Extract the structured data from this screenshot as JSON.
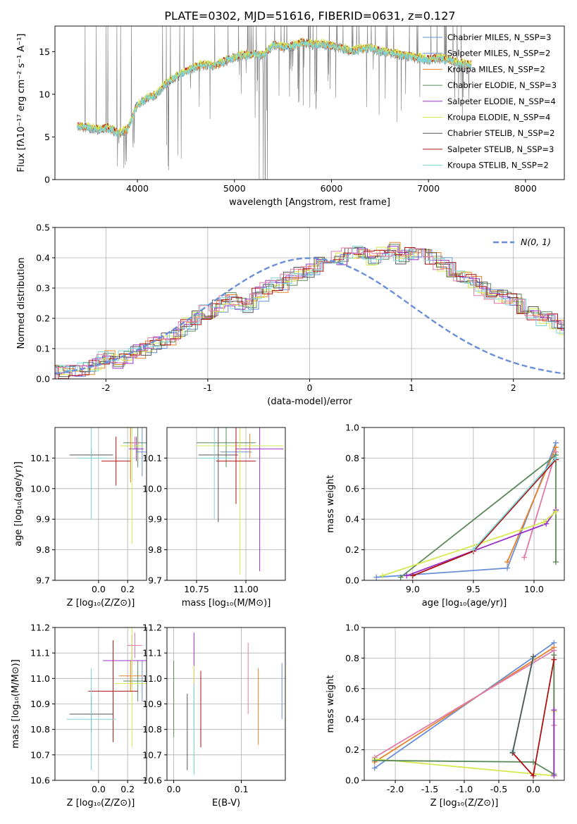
{
  "figure_title": "PLATE=0302, MJD=51616, FIBERID=0631, z=0.127",
  "colors": {
    "Chabrier MILES": "#6a8fd8",
    "Salpeter MILES": "#6a8fd8",
    "Kroupa MILES": "#e8822a",
    "Chabrier ELODIE": "#5a8a5a",
    "Salpeter ELODIE": "#9b30c8",
    "Kroupa ELODIE": "#d6ea50",
    "Chabrier STELIB": "#555555",
    "Salpeter STELIB": "#b01010",
    "Kroupa STELIB": "#7ad4d8",
    "pink": "#e07aa8",
    "data": "#808080",
    "grid": "#b0b0b0"
  },
  "chart_data": [
    {
      "type": "line",
      "title": "PLATE=0302, MJD=51616, FIBERID=0631, z=0.127",
      "xlabel": "wavelength [Angstrom, rest frame]",
      "ylabel": "Flux [fλ10⁻¹⁷ erg cm⁻² s⁻¹ A⁻¹]",
      "xlim": [
        3150,
        8400
      ],
      "ylim": [
        0,
        18
      ],
      "xticks": [
        4000,
        5000,
        6000,
        7000,
        8000
      ],
      "yticks": [
        0,
        5,
        10,
        15
      ],
      "grid": false,
      "legend_position": "top-right",
      "legend": [
        "Chabrier MILES, N_SSP=3",
        "Salpeter MILES, N_SSP=2",
        "Kroupa MILES, N_SSP=2",
        "Chabrier ELODIE, N_SSP=3",
        "Salpeter ELODIE, N_SSP=4",
        "Kroupa ELODIE, N_SSP=4",
        "Chabrier STELIB, N_SSP=2",
        "Salpeter STELIB, N_SSP=3",
        "Kroupa STELIB, N_SSP=2"
      ],
      "continuum": {
        "x": [
          3380,
          3500,
          3600,
          3700,
          3800,
          3900,
          4000,
          4100,
          4200,
          4300,
          4400,
          4500,
          4600,
          4700,
          4800,
          4900,
          5000,
          5100,
          5200,
          5300,
          5400,
          5500,
          5600,
          5700,
          5800,
          5900,
          6000,
          6100,
          6200,
          6300,
          6400,
          6500,
          6600,
          6700,
          6800,
          6900,
          7000,
          7100,
          7200,
          7300,
          7400
        ],
        "y": [
          6.2,
          6.0,
          5.8,
          6.0,
          5.4,
          5.8,
          8.8,
          9.5,
          9.9,
          11.2,
          12.0,
          12.6,
          13.2,
          13.4,
          13.3,
          13.8,
          14.3,
          14.5,
          14.6,
          14.5,
          15.8,
          15.4,
          15.6,
          16.0,
          15.8,
          15.8,
          15.6,
          15.4,
          15.0,
          15.2,
          15.4,
          15.0,
          14.8,
          14.6,
          14.4,
          14.2,
          14.0,
          14.2,
          14.0,
          13.6,
          13.4
        ]
      }
    },
    {
      "type": "histogram",
      "xlabel": "(data-model)/error",
      "ylabel": "Normed distribution",
      "xlim": [
        -2.5,
        2.5
      ],
      "ylim": [
        0,
        0.5
      ],
      "xticks": [
        -2,
        -1,
        0,
        1,
        2
      ],
      "yticks": [
        0.0,
        0.1,
        0.2,
        0.3,
        0.4,
        0.5
      ],
      "grid": true,
      "legend": [
        "N(0, 1)"
      ],
      "legend_position": "top-right",
      "bin_width": 0.1,
      "bin_start": -2.5,
      "model_envelope": [
        0.02,
        0.02,
        0.03,
        0.03,
        0.05,
        0.07,
        0.06,
        0.07,
        0.09,
        0.1,
        0.12,
        0.13,
        0.15,
        0.18,
        0.2,
        0.22,
        0.24,
        0.26,
        0.25,
        0.24,
        0.28,
        0.3,
        0.31,
        0.33,
        0.35,
        0.36,
        0.38,
        0.39,
        0.4,
        0.41,
        0.42,
        0.4,
        0.41,
        0.43,
        0.4,
        0.41,
        0.42,
        0.4,
        0.38,
        0.36,
        0.34,
        0.32,
        0.3,
        0.28,
        0.27,
        0.26,
        0.24,
        0.22,
        0.2,
        0.19,
        0.17,
        0.16,
        0.14,
        0.13,
        0.11,
        0.1,
        0.09,
        0.08,
        0.07,
        0.07,
        0.06,
        0.05,
        0.05,
        0.04,
        0.04,
        0.03,
        0.03,
        0.03,
        0.02,
        0.02
      ]
    },
    {
      "type": "scatter",
      "panel": "age-vs-Z",
      "xlabel": "Z [log₁₀(Z/Z⊙)]",
      "ylabel": "age [log₁₀(age/yr)]",
      "xlim": [
        -0.3,
        0.33
      ],
      "ylim": [
        9.7,
        10.2
      ],
      "xticks": [
        0.0,
        0.2
      ],
      "yticks": [
        9.7,
        9.8,
        9.9,
        10.0,
        10.1
      ],
      "points": [
        {
          "series": "Chabrier MILES",
          "x": 0.3,
          "y": 10.12,
          "xerr": 0.04,
          "yerr": 0.08
        },
        {
          "series": "Kroupa MILES",
          "x": 0.22,
          "y": 10.14,
          "xerr": 0.07,
          "yerr": 0.12
        },
        {
          "series": "Chabrier ELODIE",
          "x": 0.27,
          "y": 10.15,
          "xerr": 0.1,
          "yerr": 0.08
        },
        {
          "series": "Salpeter ELODIE",
          "x": 0.26,
          "y": 10.13,
          "xerr": 0.05,
          "yerr": 0.04
        },
        {
          "series": "Kroupa ELODIE",
          "x": 0.23,
          "y": 10.14,
          "xerr": 0.08,
          "yerr": 0.32
        },
        {
          "series": "Chabrier STELIB",
          "x": -0.05,
          "y": 10.11,
          "xerr": 0.15,
          "yerr": 0.02
        },
        {
          "series": "Salpeter STELIB",
          "x": 0.12,
          "y": 10.09,
          "xerr": 0.1,
          "yerr": 0.08
        },
        {
          "series": "Kroupa STELIB",
          "x": -0.05,
          "y": 10.1,
          "xerr": 0.1,
          "yerr": 0.2
        },
        {
          "series": "pink",
          "x": 0.25,
          "y": 10.15,
          "xerr": 0.03,
          "yerr": 0.02
        }
      ]
    },
    {
      "type": "scatter",
      "panel": "age-vs-mass",
      "xlabel": "mass [log₁₀(M/M⊙)]",
      "xlim": [
        10.6,
        11.2
      ],
      "ylim": [
        9.7,
        10.2
      ],
      "xticks": [
        10.75,
        11.0
      ],
      "yticks": [
        9.7,
        9.8,
        9.9,
        10.0,
        10.1
      ],
      "points": [
        {
          "series": "Chabrier MILES",
          "x": 10.95,
          "y": 10.12,
          "xerr": 0.08,
          "yerr": 0.04
        },
        {
          "series": "Kroupa MILES",
          "x": 11.02,
          "y": 10.14,
          "xerr": 0.06,
          "yerr": 0.04
        },
        {
          "series": "Chabrier ELODIE",
          "x": 10.9,
          "y": 10.15,
          "xerr": 0.15,
          "yerr": 0.08
        },
        {
          "series": "Salpeter ELODIE",
          "x": 11.07,
          "y": 10.13,
          "xerr": 0.12,
          "yerr": 0.4
        },
        {
          "series": "Kroupa ELODIE",
          "x": 10.97,
          "y": 10.14,
          "xerr": 0.22,
          "yerr": 0.42
        },
        {
          "series": "Chabrier STELIB",
          "x": 10.86,
          "y": 10.11,
          "xerr": 0.1,
          "yerr": 0.22
        },
        {
          "series": "Salpeter STELIB",
          "x": 10.95,
          "y": 10.09,
          "xerr": 0.1,
          "yerr": 0.14
        },
        {
          "series": "Kroupa STELIB",
          "x": 10.84,
          "y": 10.1,
          "xerr": 0.08,
          "yerr": 0.2
        }
      ]
    },
    {
      "type": "line",
      "panel": "mass-weight-vs-age",
      "xlabel": "age [log₁₀(age/yr)]",
      "ylabel": "mass weight",
      "xlim": [
        8.6,
        10.25
      ],
      "ylim": [
        0,
        1
      ],
      "xticks": [
        9.0,
        9.5,
        10.0
      ],
      "yticks": [
        0.0,
        0.2,
        0.4,
        0.6,
        0.8,
        1.0
      ],
      "grid": true,
      "series": [
        {
          "name": "Chabrier MILES",
          "x": [
            8.7,
            9.78,
            10.18
          ],
          "y": [
            0.02,
            0.08,
            0.9
          ]
        },
        {
          "name": "Kroupa MILES",
          "x": [
            9.78,
            10.18
          ],
          "y": [
            0.12,
            0.87
          ]
        },
        {
          "name": "pink",
          "x": [
            9.92,
            10.18
          ],
          "y": [
            0.15,
            0.84
          ]
        },
        {
          "name": "Chabrier ELODIE",
          "x": [
            8.9,
            10.18,
            10.18
          ],
          "y": [
            0.02,
            0.82,
            0.12
          ]
        },
        {
          "name": "Salpeter ELODIE",
          "x": [
            8.95,
            10.1,
            10.18
          ],
          "y": [
            0.03,
            0.37,
            0.46
          ]
        },
        {
          "name": "Kroupa ELODIE",
          "x": [
            8.75,
            10.08,
            10.18
          ],
          "y": [
            0.03,
            0.38,
            0.45
          ]
        },
        {
          "name": "Salpeter STELIB",
          "x": [
            9.0,
            9.5,
            10.18
          ],
          "y": [
            0.03,
            0.19,
            0.79
          ]
        },
        {
          "name": "Kroupa STELIB",
          "x": [
            9.5,
            10.18
          ],
          "y": [
            0.2,
            0.8
          ]
        }
      ]
    },
    {
      "type": "scatter",
      "panel": "mass-vs-Z",
      "xlabel": "Z [log₁₀(Z/Z⊙)]",
      "ylabel": "mass [log₁₀(M/M⊙)]",
      "xlim": [
        -0.3,
        0.33
      ],
      "ylim": [
        10.6,
        11.2
      ],
      "xticks": [
        0.0,
        0.2
      ],
      "yticks": [
        10.6,
        10.7,
        10.8,
        10.9,
        11.0,
        11.1,
        11.2
      ],
      "points": [
        {
          "series": "Chabrier MILES",
          "x": 0.3,
          "y": 10.99,
          "xerr": 0.04,
          "yerr": 0.08
        },
        {
          "series": "Kroupa MILES",
          "x": 0.22,
          "y": 11.01,
          "xerr": 0.08,
          "yerr": 0.06
        },
        {
          "series": "Chabrier ELODIE",
          "x": 0.27,
          "y": 10.99,
          "xerr": 0.1,
          "yerr": 0.08
        },
        {
          "series": "Salpeter ELODIE",
          "x": 0.23,
          "y": 11.07,
          "xerr": 0.2,
          "yerr": 0.1
        },
        {
          "series": "Kroupa ELODIE",
          "x": 0.23,
          "y": 10.98,
          "xerr": 0.12,
          "yerr": 0.25
        },
        {
          "series": "Chabrier STELIB",
          "x": -0.05,
          "y": 10.86,
          "xerr": 0.15,
          "yerr": 0.07
        },
        {
          "series": "Salpeter STELIB",
          "x": 0.1,
          "y": 10.95,
          "xerr": 0.17,
          "yerr": 0.2
        },
        {
          "series": "Kroupa STELIB",
          "x": -0.05,
          "y": 10.84,
          "xerr": 0.17,
          "yerr": 0.2
        },
        {
          "series": "pink",
          "x": 0.25,
          "y": 11.13,
          "xerr": 0.05,
          "yerr": 0.05
        }
      ]
    },
    {
      "type": "scatter",
      "panel": "mass-vs-EBV",
      "xlabel": "E(B-V)",
      "xlim": [
        -0.01,
        0.165
      ],
      "ylim": [
        10.6,
        11.2
      ],
      "xticks": [
        0.0,
        0.1
      ],
      "yticks": [
        10.6,
        10.7,
        10.8,
        10.9,
        11.0,
        11.1,
        11.2
      ],
      "points": [
        {
          "series": "Chabrier ELODIE",
          "x": 0.0,
          "y": 10.92,
          "yerr": 0.15
        },
        {
          "series": "Chabrier STELIB",
          "x": 0.02,
          "y": 10.79,
          "yerr": 0.15
        },
        {
          "series": "Salpeter ELODIE",
          "x": 0.03,
          "y": 10.99,
          "yerr": 0.19
        },
        {
          "series": "Kroupa ELODIE",
          "x": 0.03,
          "y": 10.84,
          "yerr": 0.21
        },
        {
          "series": "Kroupa STELIB",
          "x": 0.03,
          "y": 10.8,
          "yerr": 0.18
        },
        {
          "series": "Salpeter STELIB",
          "x": 0.04,
          "y": 10.88,
          "yerr": 0.15
        },
        {
          "series": "pink",
          "x": 0.11,
          "y": 11.0,
          "yerr": 0.14
        },
        {
          "series": "Kroupa MILES",
          "x": 0.125,
          "y": 10.89,
          "yerr": 0.15
        },
        {
          "series": "Chabrier MILES",
          "x": 0.16,
          "y": 10.95,
          "yerr": 0.11
        }
      ]
    },
    {
      "type": "line",
      "panel": "mass-weight-vs-Z",
      "xlabel": "Z [log₁₀(Z/Z⊙)]",
      "ylabel": "mass weight",
      "xlim": [
        -2.45,
        0.45
      ],
      "ylim": [
        0,
        1
      ],
      "xticks": [
        -2.0,
        -1.5,
        -1.0,
        -0.5,
        0.0
      ],
      "yticks": [
        0.0,
        0.2,
        0.4,
        0.6,
        0.8,
        1.0
      ],
      "grid": true,
      "series": [
        {
          "name": "Chabrier MILES",
          "x": [
            -2.3,
            0.3
          ],
          "y": [
            0.08,
            0.9
          ]
        },
        {
          "name": "Kroupa MILES",
          "x": [
            -2.3,
            0.3
          ],
          "y": [
            0.12,
            0.87
          ]
        },
        {
          "name": "pink",
          "x": [
            -2.3,
            0.3,
            0.3
          ],
          "y": [
            0.15,
            0.85,
            0.36
          ]
        },
        {
          "name": "Kroupa ELODIE",
          "x": [
            -2.3,
            0.3,
            0.3
          ],
          "y": [
            0.14,
            0.03,
            0.45
          ]
        },
        {
          "name": "Chabrier ELODIE",
          "x": [
            -2.3,
            0.0,
            0.3,
            0.3
          ],
          "y": [
            0.13,
            0.12,
            0.04,
            0.82
          ]
        },
        {
          "name": "Salpeter ELODIE",
          "x": [
            0.3,
            0.3
          ],
          "y": [
            0.46,
            0.03
          ]
        },
        {
          "name": "Salpeter STELIB",
          "x": [
            -0.3,
            0.0,
            0.3
          ],
          "y": [
            0.18,
            0.03,
            0.79
          ]
        },
        {
          "name": "Kroupa STELIB",
          "x": [
            -0.3,
            0.0
          ],
          "y": [
            0.19,
            0.8
          ]
        },
        {
          "name": "Chabrier STELIB",
          "x": [
            -0.3,
            0.0
          ],
          "y": [
            0.18,
            0.81
          ]
        }
      ]
    }
  ]
}
